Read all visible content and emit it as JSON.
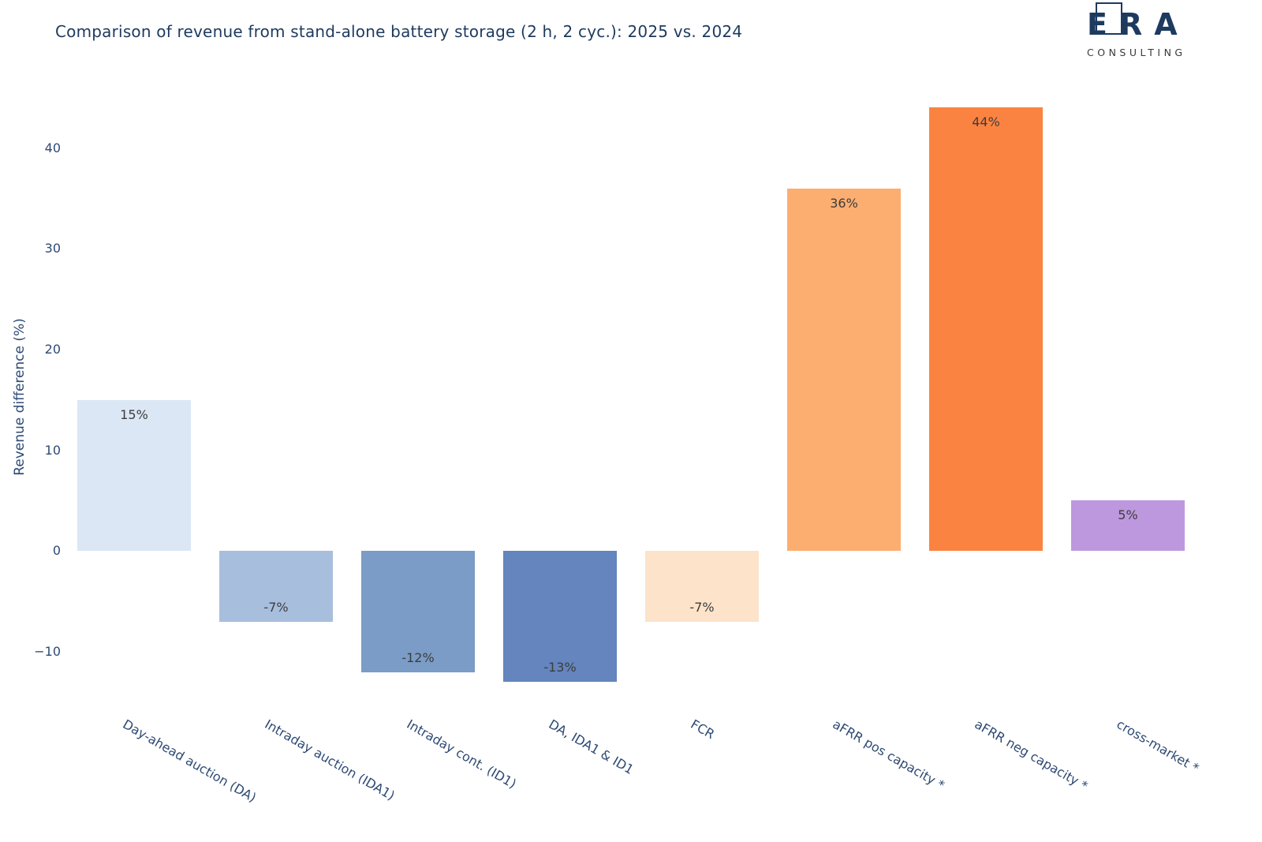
{
  "header": {
    "title": "Comparison of revenue from stand-alone battery storage (2 h, 2 cyc.): 2025 vs. 2024",
    "logo": {
      "letters": [
        "E",
        "R",
        "A"
      ],
      "subtitle": "CONSULTING",
      "color": "#1d3a5f"
    }
  },
  "chart_data": {
    "type": "bar",
    "title": "Comparison of revenue from stand-alone battery storage (2 h, 2 cyc.): 2025 vs. 2024",
    "xlabel": "",
    "ylabel": "Revenue difference (%)",
    "categories": [
      "Day-ahead auction (DA)",
      "Intraday auction (IDA1)",
      "Intraday cont. (ID1)",
      "DA, IDA1 & ID1",
      "FCR",
      "aFRR pos capacity *",
      "aFRR neg capacity *",
      "cross-market *"
    ],
    "values": [
      15,
      -7,
      -12,
      -13,
      -7,
      36,
      44,
      5
    ],
    "bar_labels": [
      "15%",
      "-7%",
      "-12%",
      "-13%",
      "-7%",
      "36%",
      "44%",
      "5%"
    ],
    "bar_colors": [
      "#dbe7f5",
      "#a8bedd",
      "#7a9cc6",
      "#6485bd",
      "#fce3c9",
      "#fcae71",
      "#fb8341",
      "#bd98de"
    ],
    "yticks": [
      40,
      30,
      20,
      10,
      0,
      -10
    ],
    "ytick_labels": [
      "40",
      "30",
      "20",
      "10",
      "0",
      "−10"
    ],
    "ylim": [
      -16,
      45
    ],
    "grid": false,
    "legend": false,
    "axis_color": "#2e4a74",
    "title_color": "#1d3a5f",
    "value_label_color": "#3d3d3d"
  }
}
